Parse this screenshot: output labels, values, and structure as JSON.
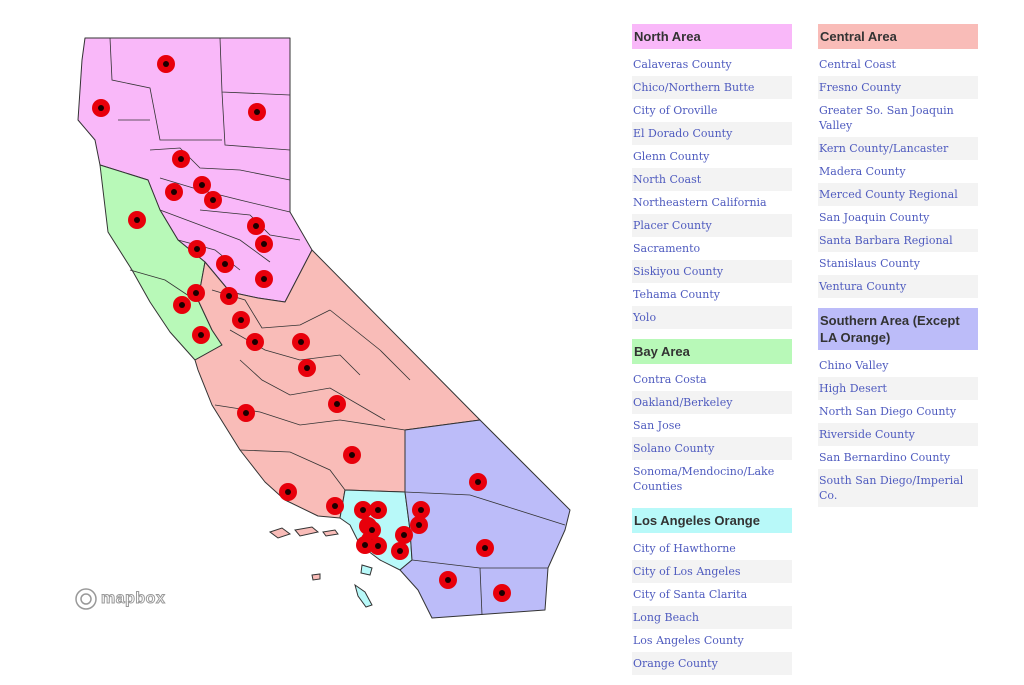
{
  "colors": {
    "north": "#f9b8f9",
    "bay": "#b8f9b8",
    "central": "#f9bcb8",
    "la_orange": "#b8f9f9",
    "southern": "#bcbcf9",
    "marker": "#e8000b",
    "link": "#4f5bbf"
  },
  "map": {
    "attribution": "mapbox",
    "marker_count": 41
  },
  "regions_left": [
    {
      "key": "north",
      "title": "North Area",
      "color": "#f9b8f9",
      "items": [
        "Calaveras County",
        "Chico/Northern Butte",
        "City of Oroville",
        "El Dorado County",
        "Glenn County",
        "North Coast",
        "Northeastern California",
        "Placer County",
        "Sacramento",
        "Siskiyou County",
        "Tehama County",
        "Yolo"
      ]
    },
    {
      "key": "bay",
      "title": "Bay Area",
      "color": "#b8f9b8",
      "items": [
        "Contra Costa",
        "Oakland/Berkeley",
        "San Jose",
        "Solano County",
        "Sonoma/Mendocino/Lake Counties"
      ]
    },
    {
      "key": "la_orange",
      "title": "Los Angeles Orange",
      "color": "#b8f9f9",
      "items": [
        "City of Hawthorne",
        "City of Los Angeles",
        "City of Santa Clarita",
        "Long Beach",
        "Los Angeles County",
        "Orange County"
      ]
    }
  ],
  "regions_right": [
    {
      "key": "central",
      "title": "Central Area",
      "color": "#f9bcb8",
      "items": [
        "Central Coast",
        "Fresno County",
        "Greater So. San Joaquin Valley",
        "Kern County/Lancaster",
        "Madera County",
        "Merced County Regional",
        "San Joaquin County",
        "Santa Barbara Regional",
        "Stanislaus County",
        "Ventura County"
      ]
    },
    {
      "key": "southern",
      "title": "Southern Area (Except LA Orange)",
      "color": "#bcbcf9",
      "items": [
        "Chino Valley",
        "High Desert",
        "North San Diego County",
        "Riverside County",
        "San Bernardino County",
        "South San Diego/Imperial Co."
      ]
    }
  ]
}
